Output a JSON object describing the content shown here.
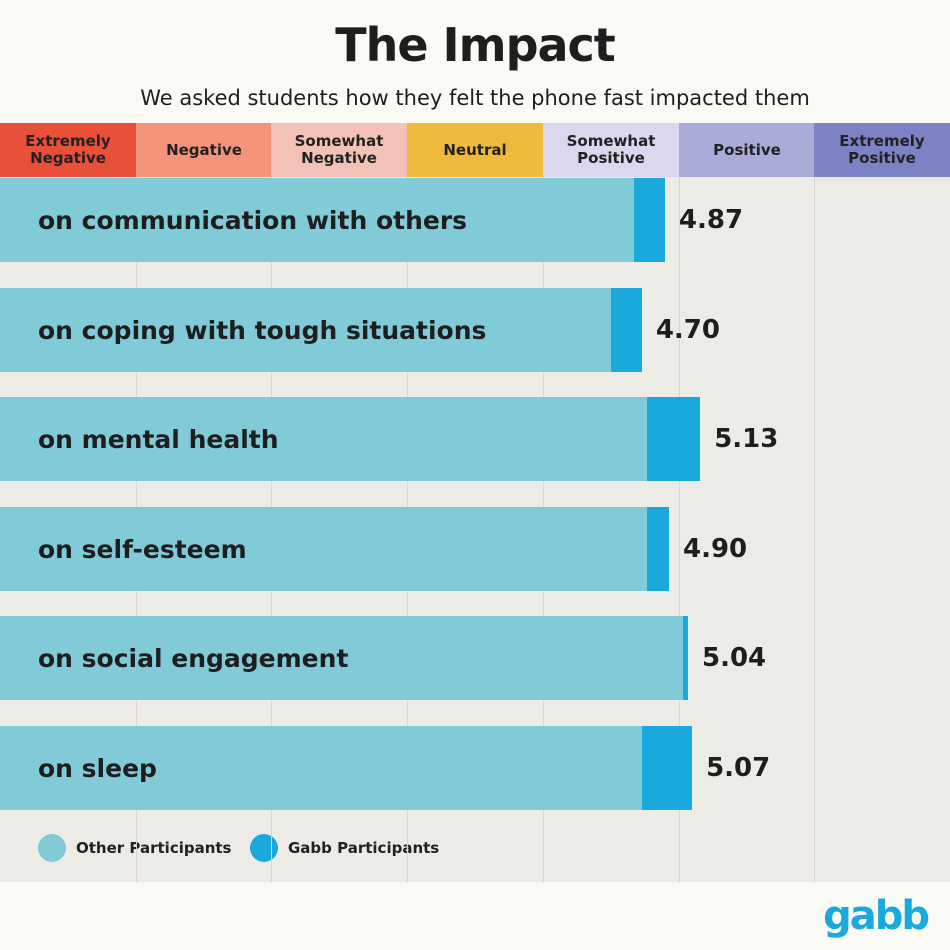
{
  "title": "The Impact",
  "subtitle": "We asked students how they felt the phone fast impacted them",
  "logo": "gabb",
  "colors": {
    "other": "#80cbd7",
    "gabb": "#1aa9dc",
    "scale": [
      "#e8503a",
      "#f3937a",
      "#f2c2b8",
      "#efba3b",
      "#d9d8ee",
      "#a9acd8",
      "#7b83c4"
    ]
  },
  "chart_data": {
    "type": "bar",
    "orientation": "horizontal",
    "scale_labels": [
      "Extremely Negative",
      "Negative",
      "Somewhat Negative",
      "Neutral",
      "Somewhat Positive",
      "Positive",
      "Extremely Positive"
    ],
    "xlim": [
      0,
      7
    ],
    "categories": [
      "on communication with others",
      "on coping with tough situations",
      "on mental health",
      "on self-esteem",
      "on social engagement",
      "on sleep"
    ],
    "series": [
      {
        "name": "Other Participants",
        "values": [
          4.64,
          4.47,
          4.74,
          4.74,
          5.0,
          4.7
        ]
      },
      {
        "name": "Gabb Participants",
        "values": [
          4.87,
          4.7,
          5.13,
          4.9,
          5.04,
          5.07
        ]
      }
    ],
    "value_labels": [
      "4.87",
      "4.70",
      "5.13",
      "4.90",
      "5.04",
      "5.07"
    ],
    "legend": "bottom-left",
    "grid": true
  }
}
